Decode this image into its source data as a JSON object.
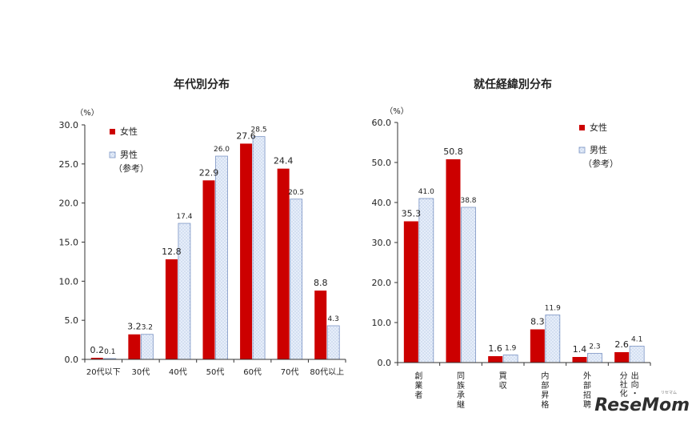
{
  "colors": {
    "female": "#cc0000",
    "male_fill": "#e6eefa",
    "male_stroke": "#7a93c4",
    "male_dot": "#8fa5d0"
  },
  "watermark": {
    "text": "ReseMom",
    "kana": "リセマム"
  },
  "chart_data": [
    {
      "type": "bar",
      "title": "年代別分布",
      "unit": "（%）",
      "categories": [
        "20代以下",
        "30代",
        "40代",
        "50代",
        "60代",
        "70代",
        "80代以上"
      ],
      "series": [
        {
          "name": "女性",
          "values": [
            0.2,
            3.2,
            12.8,
            22.9,
            27.6,
            24.4,
            8.8
          ],
          "labels": [
            "0.2",
            "3.2",
            "12.8",
            "22.9",
            "27.6",
            "24.4",
            "8.8"
          ]
        },
        {
          "name": "男性",
          "name_note": "（参考）",
          "values": [
            0.1,
            3.2,
            17.4,
            26.0,
            28.5,
            20.5,
            4.3
          ],
          "labels": [
            "0.1",
            "3.2",
            "17.4",
            "26.0",
            "28.5",
            "20.5",
            "4.3"
          ]
        }
      ],
      "ylim": [
        0,
        30
      ],
      "yticks": [
        "0.0",
        "5.0",
        "10.0",
        "15.0",
        "20.0",
        "25.0",
        "30.0"
      ],
      "grid": false,
      "legend_position": "top-left"
    },
    {
      "type": "bar",
      "title": "就任経緯別分布",
      "unit": "（%）",
      "categories": [
        "創業者",
        "同族承継",
        "買収",
        "内部昇格",
        "外部招聘",
        "出向・分社化"
      ],
      "series": [
        {
          "name": "女性",
          "values": [
            35.3,
            50.8,
            1.6,
            8.3,
            1.4,
            2.6
          ],
          "labels": [
            "35.3",
            "50.8",
            "1.6",
            "8.3",
            "1.4",
            "2.6"
          ]
        },
        {
          "name": "男性",
          "name_note": "（参考）",
          "values": [
            41.0,
            38.8,
            1.9,
            11.9,
            2.3,
            4.1
          ],
          "labels": [
            "41.0",
            "38.8",
            "1.9",
            "11.9",
            "2.3",
            "4.1"
          ]
        }
      ],
      "ylim": [
        0,
        60
      ],
      "yticks": [
        "0.0",
        "10.0",
        "20.0",
        "30.0",
        "40.0",
        "50.0",
        "60.0"
      ],
      "grid": false,
      "legend_position": "top-right"
    }
  ]
}
